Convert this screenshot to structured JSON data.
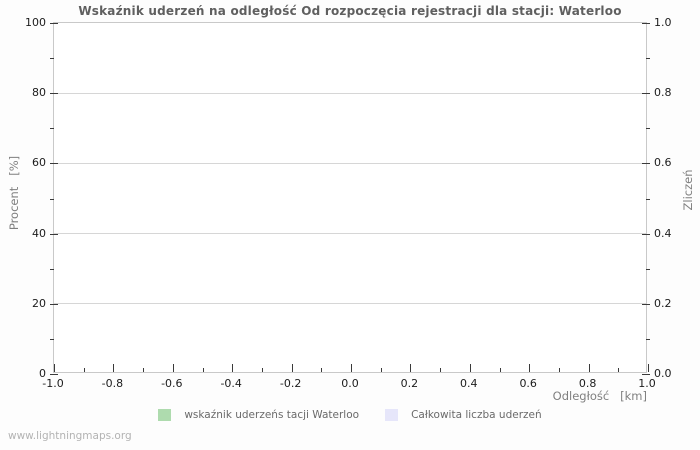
{
  "title": "Wskaźnik uderzeń na odległość Od rozpoczęcia rejestracji dla stacji: Waterloo",
  "watermark": "www.lightningmaps.org",
  "chart_data": {
    "type": "line",
    "title": "Wskaźnik uderzeń na odległość Od rozpoczęcia rejestracji dla stacji: Waterloo",
    "grid": "horizontal-only",
    "background": "#fdfdfd",
    "x_axis": {
      "label": "Odległość   [km]",
      "min": -1.0,
      "max": 1.0,
      "tick_values": [
        -1.0,
        -0.8,
        -0.6,
        -0.4,
        -0.2,
        0.0,
        0.2,
        0.4,
        0.6,
        0.8,
        1.0
      ],
      "tick_labels": [
        "-1.0",
        "-0.8",
        "-0.6",
        "-0.4",
        "-0.2",
        "0.0",
        "0.2",
        "0.4",
        "0.6",
        "0.8",
        "1.0"
      ],
      "minor_tick_values": [
        -0.9,
        -0.7,
        -0.5,
        -0.3,
        -0.1,
        0.1,
        0.3,
        0.5,
        0.7,
        0.9
      ]
    },
    "y_axis_left": {
      "label": "Procent   [%]",
      "min": 0,
      "max": 100,
      "tick_values": [
        0,
        20,
        40,
        60,
        80,
        100
      ],
      "tick_labels": [
        "0",
        "20",
        "40",
        "60",
        "80",
        "100"
      ],
      "minor_tick_values": [
        10,
        30,
        50,
        70,
        90
      ]
    },
    "y_axis_right": {
      "label": "Zliczeń",
      "min": 0.0,
      "max": 1.0,
      "tick_values": [
        0.0,
        0.2,
        0.4,
        0.6,
        0.8,
        1.0
      ],
      "tick_labels": [
        "0.0",
        "0.2",
        "0.4",
        "0.6",
        "0.8",
        "1.0"
      ],
      "minor_tick_values": [
        0.1,
        0.3,
        0.5,
        0.7,
        0.9
      ]
    },
    "legend": {
      "position": "bottom-center",
      "items": [
        {
          "label": "wskaźnik uderzeńs tacji Waterloo",
          "color": "#aedbae"
        },
        {
          "label": "Całkowita liczba uderzeń",
          "color": "#e6e6fa"
        }
      ]
    },
    "series": [
      {
        "name": "wskaźnik uderzeńs tacji Waterloo",
        "color": "#aedbae",
        "x": [],
        "values": []
      },
      {
        "name": "Całkowita liczba uderzeń",
        "color": "#e6e6fa",
        "x": [],
        "values": []
      }
    ]
  }
}
